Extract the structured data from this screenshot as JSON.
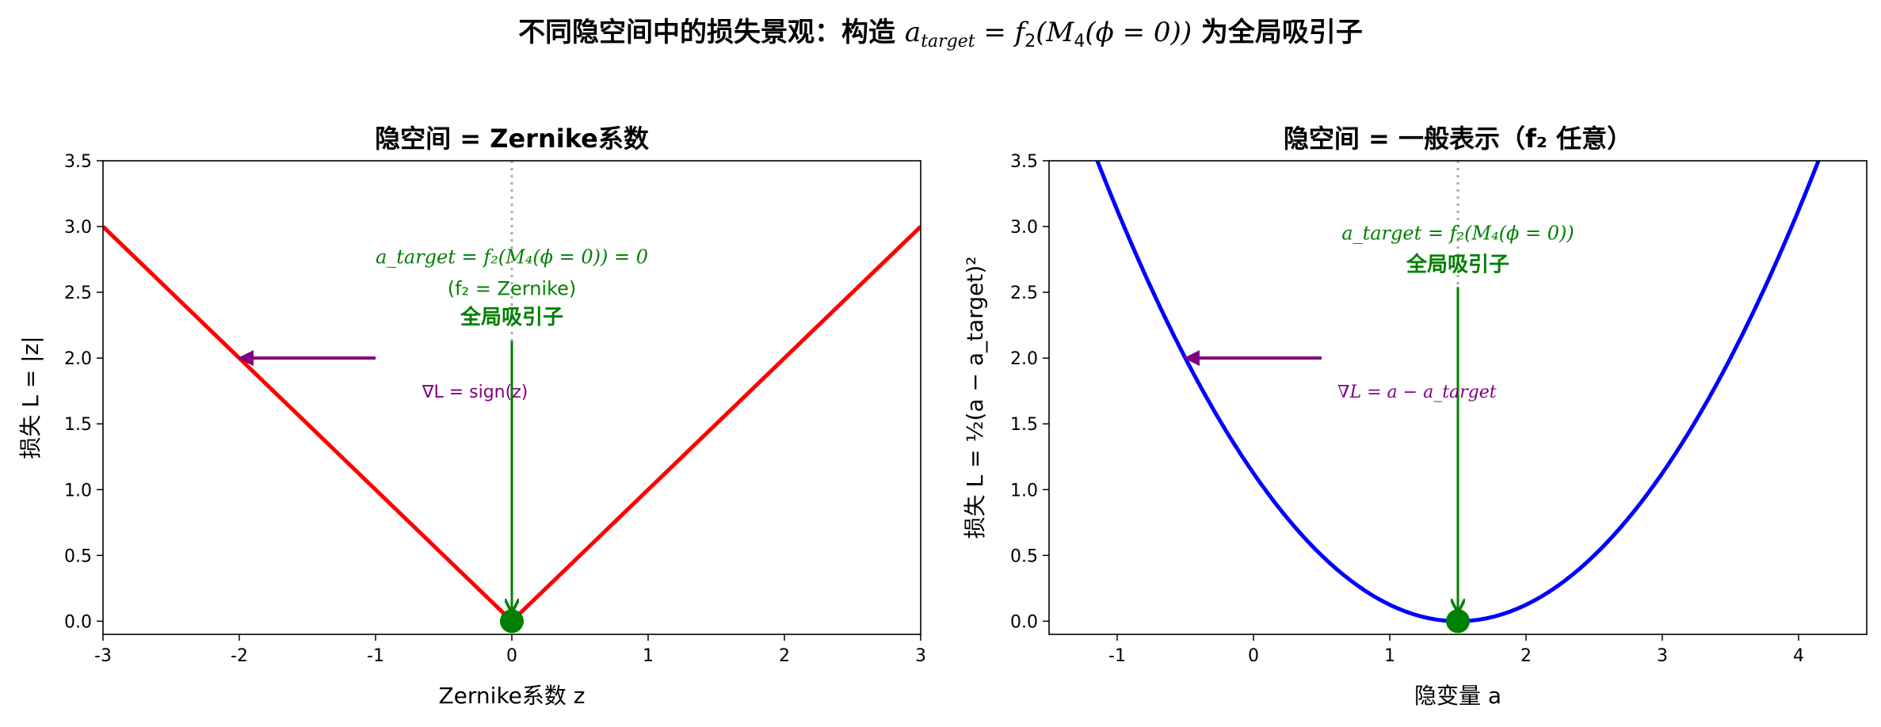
{
  "suptitle": {
    "prefix": "不同隐空间中的损失景观：构造 ",
    "math_a": "a",
    "math_sub": "target",
    "math_rest": " = f",
    "math_f_sub": "2",
    "math_tail": "(M",
    "math_m_sub": "4",
    "math_end": "(ϕ = 0))",
    "suffix": " 为全局吸引子"
  },
  "chart_data": [
    {
      "type": "line",
      "title": "隐空间 = Zernike系数",
      "xlabel": "Zernike系数 z",
      "ylabel": "损失 L = |z|",
      "xlim": [
        -3,
        3
      ],
      "ylim": [
        -0.1,
        3.5
      ],
      "xticks": [
        "-3",
        "-2",
        "-1",
        "0",
        "1",
        "2",
        "3"
      ],
      "yticks": [
        "0.0",
        "0.5",
        "1.0",
        "1.5",
        "2.0",
        "2.5",
        "3.0",
        "3.5"
      ],
      "grid": false,
      "series": [
        {
          "function": "abs",
          "color": "#ff0000",
          "x": [
            -3,
            0,
            3
          ],
          "y": [
            3,
            0,
            3
          ]
        }
      ],
      "target_point": {
        "x": 0,
        "y": 0,
        "color": "#008000"
      },
      "annotations": {
        "line1": "a_target = f₂(M₄(ϕ = 0)) = 0",
        "line2": "(f₂ = Zernike)",
        "line3": "全局吸引子",
        "gradient": "∇L = sign(z)",
        "gradient_arrow": {
          "from": [
            -1,
            2
          ],
          "to": [
            -2,
            2
          ],
          "color": "#800080"
        }
      }
    },
    {
      "type": "line",
      "title": "隐空间 = 一般表示（f₂ 任意）",
      "xlabel": "隐变量 a",
      "ylabel": "损失 L = ½(a − a_target)²",
      "xlim": [
        -1.5,
        4.5
      ],
      "ylim": [
        -0.1,
        3.5
      ],
      "xticks": [
        "-1",
        "0",
        "1",
        "2",
        "3",
        "4"
      ],
      "yticks": [
        "0.0",
        "0.5",
        "1.0",
        "1.5",
        "2.0",
        "2.5",
        "3.0",
        "3.5"
      ],
      "grid": false,
      "series": [
        {
          "function": "half_square",
          "center": 1.5,
          "color": "#0000ff",
          "x_range": [
            -1.5,
            4.5
          ]
        }
      ],
      "target_point": {
        "x": 1.5,
        "y": 0,
        "color": "#008000"
      },
      "annotations": {
        "line1": "a_target = f₂(M₄(ϕ = 0))",
        "line3": "全局吸引子",
        "gradient": "∇L = a − a_target",
        "gradient_arrow": {
          "from": [
            0.5,
            2
          ],
          "to": [
            -0.5,
            2
          ],
          "color": "#800080"
        }
      }
    }
  ]
}
